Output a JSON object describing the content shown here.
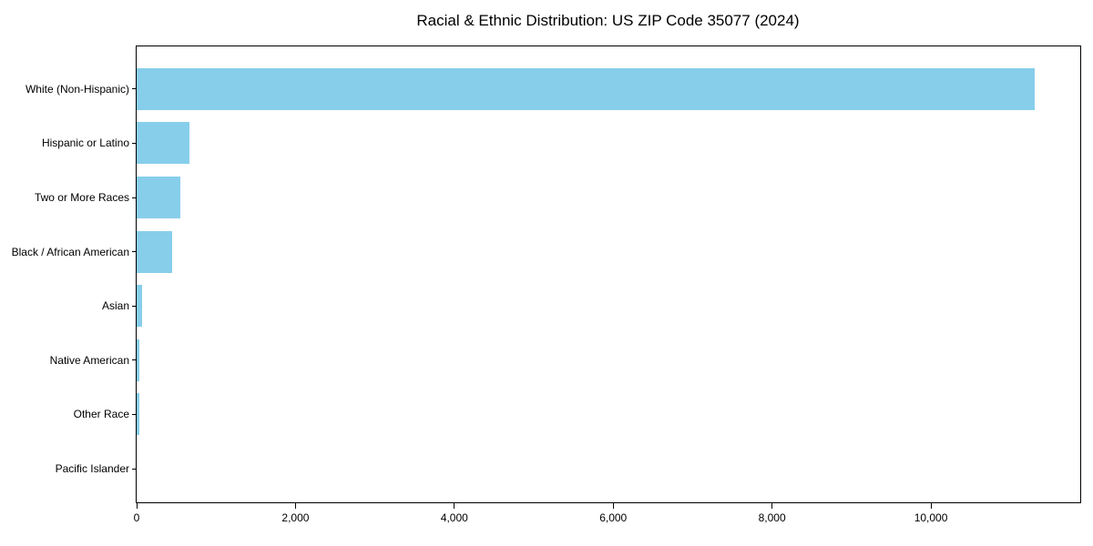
{
  "chart_data": {
    "type": "bar",
    "orientation": "horizontal",
    "title": "Racial & Ethnic Distribution: US ZIP Code 35077 (2024)",
    "categories": [
      "White (Non-Hispanic)",
      "Hispanic or Latino",
      "Two or More Races",
      "Black / African American",
      "Asian",
      "Native American",
      "Other Race",
      "Pacific Islander"
    ],
    "values": [
      11310,
      660,
      550,
      450,
      65,
      35,
      33,
      0
    ],
    "title_text": "Racial & Ethnic Distribution: US ZIP Code 35077 (2024)",
    "xlabel": "",
    "ylabel": "",
    "xlim": [
      0,
      11880
    ],
    "x_ticks": [
      {
        "value": 0,
        "label": "0"
      },
      {
        "value": 2000,
        "label": "2,000"
      },
      {
        "value": 4000,
        "label": "4,000"
      },
      {
        "value": 6000,
        "label": "6,000"
      },
      {
        "value": 8000,
        "label": "8,000"
      },
      {
        "value": 10000,
        "label": "10,000"
      }
    ],
    "bar_color": "#87CEEB",
    "axis_color": "#000000",
    "grid": false,
    "legend": null
  }
}
